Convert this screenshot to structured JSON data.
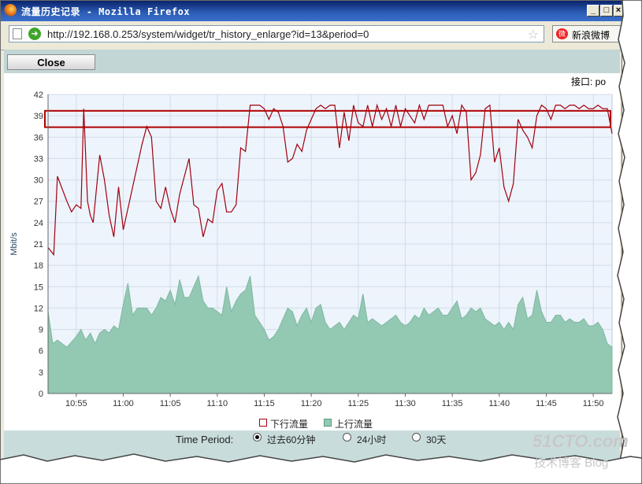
{
  "window": {
    "title": "流量历史记录 - Mozilla Firefox"
  },
  "navbar": {
    "url": "http://192.168.0.253/system/widget/tr_history_enlarge?id=13&period=0",
    "weibo_label": "新浪微博"
  },
  "toolbar": {
    "close_label": "Close"
  },
  "interface_label": "接口: po",
  "footer": {
    "period_title": "Time Period:",
    "options": [
      "过去60分钟",
      "24小时",
      "30天"
    ],
    "selected": 0
  },
  "watermark": {
    "main": "51CTO.com",
    "sub": "技术博客 Blog"
  },
  "colors": {
    "download": "#a00010",
    "upload_fill": "#93c8b3",
    "highlight_box": "#b00000",
    "plot_bg": "#eef4fb"
  },
  "chart_data": {
    "type": "area",
    "title": "",
    "ylabel": "Mbit/s",
    "xlabel": "",
    "ylim": [
      0,
      42
    ],
    "yticks": [
      "0",
      "3",
      "6",
      "9",
      "12",
      "15",
      "18",
      "21",
      "24",
      "27",
      "30",
      "33",
      "36",
      "39",
      "42"
    ],
    "xlim": [
      "10:52",
      "11:52"
    ],
    "xticks": [
      "10:55",
      "11:00",
      "11:05",
      "11:10",
      "11:15",
      "11:20",
      "11:25",
      "11:30",
      "11:35",
      "11:40",
      "11:45",
      "11:50"
    ],
    "highlight_band": [
      37.4,
      39.7
    ],
    "series": [
      {
        "name": "下行流量",
        "style": "line",
        "points": [
          [
            0,
            20.5
          ],
          [
            0.6,
            19.5
          ],
          [
            1,
            30.5
          ],
          [
            2,
            27
          ],
          [
            2.5,
            25.5
          ],
          [
            3,
            26.5
          ],
          [
            3.5,
            26
          ],
          [
            3.8,
            40
          ],
          [
            4.2,
            27
          ],
          [
            4.5,
            25
          ],
          [
            4.8,
            24
          ],
          [
            5.5,
            33.5
          ],
          [
            6,
            30
          ],
          [
            6.5,
            25
          ],
          [
            7,
            22
          ],
          [
            7.5,
            29
          ],
          [
            8,
            23
          ],
          [
            9,
            29
          ],
          [
            10,
            35
          ],
          [
            10.5,
            37.5
          ],
          [
            11,
            36
          ],
          [
            11.5,
            27
          ],
          [
            12,
            26
          ],
          [
            12.5,
            29
          ],
          [
            13,
            26
          ],
          [
            13.5,
            24
          ],
          [
            14,
            28
          ],
          [
            15,
            33
          ],
          [
            15.5,
            26.5
          ],
          [
            16,
            26
          ],
          [
            16.5,
            22
          ],
          [
            17,
            24.5
          ],
          [
            17.5,
            24
          ],
          [
            18,
            28.5
          ],
          [
            18.5,
            29.5
          ],
          [
            19,
            25.5
          ],
          [
            19.5,
            25.5
          ],
          [
            20,
            26.5
          ],
          [
            20.5,
            34.5
          ],
          [
            21,
            34
          ],
          [
            21.5,
            40.5
          ],
          [
            22,
            40.5
          ],
          [
            22.5,
            40.5
          ],
          [
            23,
            40
          ],
          [
            23.5,
            38.5
          ],
          [
            24,
            40
          ],
          [
            24.5,
            39.5
          ],
          [
            25,
            37.5
          ],
          [
            25.5,
            32.5
          ],
          [
            26,
            33
          ],
          [
            26.5,
            35
          ],
          [
            27,
            34
          ],
          [
            27.5,
            37
          ],
          [
            28,
            38.5
          ],
          [
            28.5,
            40
          ],
          [
            29,
            40.5
          ],
          [
            29.5,
            40
          ],
          [
            30,
            40.5
          ],
          [
            30.5,
            40.5
          ],
          [
            31,
            34.5
          ],
          [
            31.5,
            39.5
          ],
          [
            32,
            35.5
          ],
          [
            32.5,
            40.5
          ],
          [
            33,
            38
          ],
          [
            33.5,
            37.5
          ],
          [
            34,
            40.5
          ],
          [
            34.5,
            37.5
          ],
          [
            35,
            40.5
          ],
          [
            35.5,
            38.5
          ],
          [
            36,
            40
          ],
          [
            36.5,
            37.5
          ],
          [
            37,
            40.5
          ],
          [
            37.5,
            37.5
          ],
          [
            38,
            40
          ],
          [
            38.5,
            39
          ],
          [
            39,
            38
          ],
          [
            39.5,
            40.5
          ],
          [
            40,
            38.5
          ],
          [
            40.5,
            40.5
          ],
          [
            41,
            40.5
          ],
          [
            41.5,
            40.5
          ],
          [
            42,
            40.5
          ],
          [
            42.5,
            37.5
          ],
          [
            43,
            39
          ],
          [
            43.5,
            36.5
          ],
          [
            44,
            40.5
          ],
          [
            44.5,
            39.5
          ],
          [
            45,
            30
          ],
          [
            45.5,
            31
          ],
          [
            46,
            33.5
          ],
          [
            46.5,
            40
          ],
          [
            47,
            40.5
          ],
          [
            47.5,
            32.5
          ],
          [
            48,
            34.5
          ],
          [
            48.5,
            29
          ],
          [
            49,
            27
          ],
          [
            49.5,
            29.5
          ],
          [
            50,
            38.5
          ],
          [
            50.5,
            37
          ],
          [
            51,
            36
          ],
          [
            51.5,
            34.5
          ],
          [
            52,
            39
          ],
          [
            52.5,
            40.5
          ],
          [
            53,
            40
          ],
          [
            53.5,
            38.5
          ],
          [
            54,
            40.5
          ],
          [
            54.5,
            40.5
          ],
          [
            55,
            40
          ],
          [
            55.5,
            40.5
          ],
          [
            56,
            40.5
          ],
          [
            56.5,
            40
          ],
          [
            57,
            40.5
          ],
          [
            57.5,
            40
          ],
          [
            58,
            40
          ],
          [
            58.5,
            40.5
          ],
          [
            59,
            40
          ],
          [
            59.5,
            40
          ],
          [
            60,
            36.5
          ]
        ]
      },
      {
        "name": "上行流量",
        "style": "area",
        "points": [
          [
            0,
            11.5
          ],
          [
            0.5,
            7
          ],
          [
            1,
            7.5
          ],
          [
            2,
            6.5
          ],
          [
            3,
            8
          ],
          [
            3.5,
            9
          ],
          [
            4,
            7.5
          ],
          [
            4.5,
            8.5
          ],
          [
            5,
            7
          ],
          [
            5.5,
            8.5
          ],
          [
            6,
            9
          ],
          [
            6.5,
            8.5
          ],
          [
            7,
            9.5
          ],
          [
            7.5,
            9
          ],
          [
            8,
            12.5
          ],
          [
            8.5,
            15.5
          ],
          [
            9,
            11
          ],
          [
            9.5,
            12
          ],
          [
            10,
            12
          ],
          [
            10.5,
            12
          ],
          [
            11,
            11
          ],
          [
            11.5,
            12
          ],
          [
            12,
            13.5
          ],
          [
            12.5,
            13
          ],
          [
            13,
            14.5
          ],
          [
            13.5,
            12.5
          ],
          [
            14,
            16
          ],
          [
            14.5,
            13.5
          ],
          [
            15,
            13.5
          ],
          [
            15.5,
            15
          ],
          [
            16,
            16.5
          ],
          [
            16.5,
            13
          ],
          [
            17,
            12
          ],
          [
            17.5,
            12
          ],
          [
            18,
            11.5
          ],
          [
            18.5,
            11
          ],
          [
            19,
            15
          ],
          [
            19.5,
            11.5
          ],
          [
            20,
            13
          ],
          [
            20.5,
            14
          ],
          [
            21,
            14.5
          ],
          [
            21.5,
            16.5
          ],
          [
            22,
            11
          ],
          [
            22.5,
            10
          ],
          [
            23,
            9
          ],
          [
            23.5,
            7.5
          ],
          [
            24,
            8
          ],
          [
            24.5,
            9
          ],
          [
            25,
            10.5
          ],
          [
            25.5,
            12
          ],
          [
            26,
            11.5
          ],
          [
            26.5,
            9.5
          ],
          [
            27,
            11
          ],
          [
            27.5,
            12
          ],
          [
            28,
            10
          ],
          [
            28.5,
            12
          ],
          [
            29,
            12.5
          ],
          [
            29.5,
            10
          ],
          [
            30,
            9
          ],
          [
            30.5,
            9.5
          ],
          [
            31,
            10
          ],
          [
            31.5,
            9
          ],
          [
            32,
            10
          ],
          [
            32.5,
            11
          ],
          [
            33,
            10.5
          ],
          [
            33.5,
            14
          ],
          [
            34,
            10
          ],
          [
            34.5,
            10.5
          ],
          [
            35,
            10
          ],
          [
            35.5,
            9.5
          ],
          [
            36,
            10
          ],
          [
            36.5,
            10.5
          ],
          [
            37,
            11
          ],
          [
            37.5,
            10
          ],
          [
            38,
            9.5
          ],
          [
            38.5,
            10
          ],
          [
            39,
            11
          ],
          [
            39.5,
            10.5
          ],
          [
            40,
            12
          ],
          [
            40.5,
            11
          ],
          [
            41,
            11.5
          ],
          [
            41.5,
            12
          ],
          [
            42,
            11
          ],
          [
            42.5,
            11
          ],
          [
            43,
            12
          ],
          [
            43.5,
            13
          ],
          [
            44,
            10.5
          ],
          [
            44.5,
            11
          ],
          [
            45,
            12
          ],
          [
            45.5,
            11.5
          ],
          [
            46,
            12
          ],
          [
            46.5,
            10.5
          ],
          [
            47,
            10
          ],
          [
            47.5,
            9.5
          ],
          [
            48,
            10
          ],
          [
            48.5,
            9
          ],
          [
            49,
            10
          ],
          [
            49.5,
            9
          ],
          [
            50,
            12.5
          ],
          [
            50.5,
            13.5
          ],
          [
            51,
            10.5
          ],
          [
            51.5,
            11
          ],
          [
            52,
            14.5
          ],
          [
            52.5,
            11.5
          ],
          [
            53,
            10
          ],
          [
            53.5,
            10
          ],
          [
            54,
            11
          ],
          [
            54.5,
            11
          ],
          [
            55,
            10
          ],
          [
            55.5,
            10.5
          ],
          [
            56,
            10
          ],
          [
            56.5,
            10
          ],
          [
            57,
            10.5
          ],
          [
            57.5,
            9.5
          ],
          [
            58,
            9.5
          ],
          [
            58.5,
            10
          ],
          [
            59,
            9
          ],
          [
            59.5,
            7
          ],
          [
            60,
            6.5
          ]
        ]
      }
    ],
    "legend": [
      "下行流量",
      "上行流量"
    ],
    "legend_position": "bottom",
    "grid": true
  }
}
